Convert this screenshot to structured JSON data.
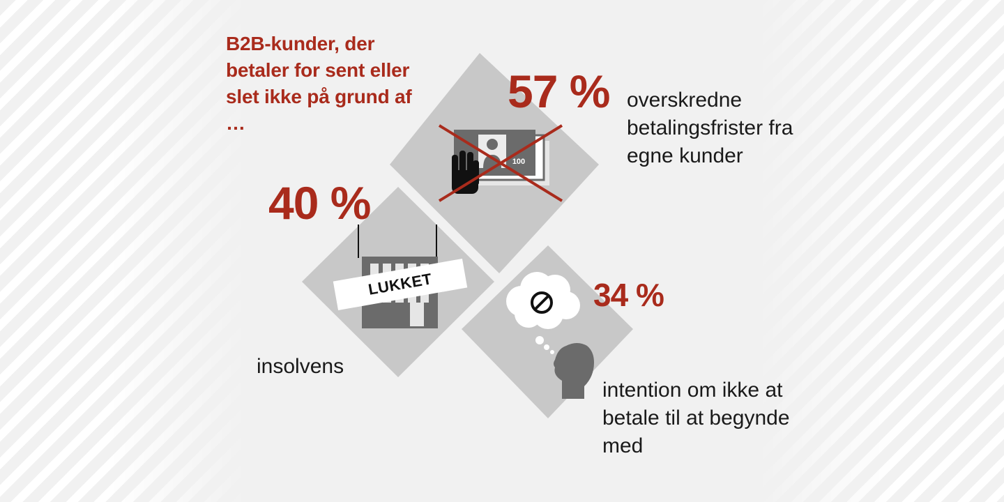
{
  "headline": "B2B-kunder, der betaler for sent eller slet ikke på grund af …",
  "stats": [
    {
      "percent": "57 %",
      "label": "overskredne betalingsfrister fra egne kunder",
      "icon": "stop-payment-icon"
    },
    {
      "percent": "40 %",
      "label": "insolvens",
      "icon": "closed-building-icon"
    },
    {
      "percent": "34 %",
      "label": "intention om ikke at betale til at begynde med",
      "icon": "refusal-thought-icon"
    }
  ],
  "sign_text": "LUKKET",
  "banknote_value": "100",
  "colors": {
    "accent": "#a92b1c",
    "tile": "#c8c8c8",
    "icon": "#6b6b6b",
    "background": "#f1f1f1"
  }
}
